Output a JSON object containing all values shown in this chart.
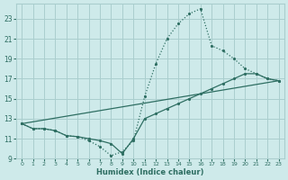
{
  "xlabel": "Humidex (Indice chaleur)",
  "bg_color": "#ceeaea",
  "grid_color": "#aacece",
  "line_color": "#2e6e62",
  "xlim": [
    -0.5,
    23.5
  ],
  "ylim": [
    9,
    24.5
  ],
  "xticks": [
    0,
    1,
    2,
    3,
    4,
    5,
    6,
    7,
    8,
    9,
    10,
    11,
    12,
    13,
    14,
    15,
    16,
    17,
    18,
    19,
    20,
    21,
    22,
    23
  ],
  "yticks": [
    9,
    11,
    13,
    15,
    17,
    19,
    21,
    23
  ],
  "line1_x": [
    0,
    1,
    2,
    3,
    4,
    5,
    6,
    7,
    8,
    9,
    10,
    11,
    12,
    13,
    14,
    15,
    16,
    17,
    18,
    19,
    20,
    21,
    22,
    23
  ],
  "line1_y": [
    12.5,
    12.0,
    12.0,
    11.8,
    11.3,
    11.2,
    10.8,
    10.2,
    9.3,
    9.7,
    10.8,
    15.2,
    18.5,
    21.0,
    22.5,
    23.5,
    24.0,
    20.3,
    19.8,
    19.0,
    18.0,
    17.5,
    17.0,
    16.8
  ],
  "line2_x": [
    0,
    1,
    2,
    3,
    4,
    5,
    6,
    7,
    8,
    9,
    10,
    11,
    12,
    13,
    14,
    15,
    16,
    17,
    18,
    19,
    20,
    21,
    22,
    23
  ],
  "line2_y": [
    12.5,
    12.0,
    12.0,
    11.8,
    11.3,
    11.2,
    11.0,
    10.8,
    10.5,
    9.5,
    11.0,
    13.0,
    13.5,
    14.0,
    14.5,
    15.0,
    15.5,
    16.0,
    16.5,
    17.0,
    17.5,
    17.5,
    17.0,
    16.8
  ],
  "line3_x": [
    0,
    23
  ],
  "line3_y": [
    12.5,
    16.8
  ]
}
